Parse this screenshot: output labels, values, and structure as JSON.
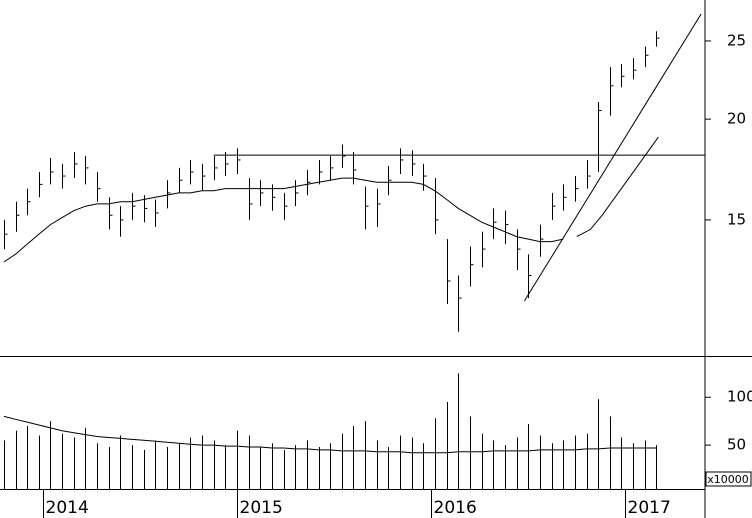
{
  "chart_data": [
    {
      "type": "ohlc",
      "color": "#000000",
      "log_scale": true,
      "x": [
        2013.8,
        2013.86,
        2013.92,
        2013.98,
        2014.04,
        2014.1,
        2014.16,
        2014.22,
        2014.28,
        2014.34,
        2014.4,
        2014.46,
        2014.52,
        2014.58,
        2014.64,
        2014.7,
        2014.76,
        2014.82,
        2014.88,
        2014.94,
        2015.0,
        2015.06,
        2015.12,
        2015.18,
        2015.24,
        2015.3,
        2015.36,
        2015.42,
        2015.48,
        2015.54,
        2015.6,
        2015.66,
        2015.72,
        2015.78,
        2015.84,
        2015.9,
        2015.96,
        2016.02,
        2016.08,
        2016.14,
        2016.2,
        2016.26,
        2016.32,
        2016.38,
        2016.44,
        2016.5,
        2016.56,
        2016.62,
        2016.68,
        2016.74,
        2016.8,
        2016.86,
        2016.92,
        2016.98,
        2017.04,
        2017.1,
        2017.16
      ],
      "high": [
        15.0,
        15.8,
        16.4,
        17.2,
        17.9,
        17.6,
        18.2,
        18.0,
        17.2,
        16.0,
        15.6,
        16.2,
        16.1,
        15.9,
        16.8,
        17.4,
        17.8,
        17.6,
        18.0,
        18.2,
        18.4,
        16.9,
        16.8,
        16.6,
        16.2,
        16.8,
        17.3,
        17.8,
        18.0,
        18.6,
        18.2,
        16.5,
        16.4,
        17.5,
        18.4,
        18.3,
        17.6,
        16.9,
        14.2,
        12.8,
        13.9,
        14.5,
        15.5,
        15.4,
        14.6,
        13.6,
        14.8,
        16.2,
        16.6,
        17.0,
        17.8,
        21.0,
        23.2,
        23.4,
        23.8,
        24.6,
        25.7
      ],
      "low": [
        13.8,
        14.5,
        15.2,
        16.0,
        16.6,
        16.4,
        16.9,
        16.6,
        15.8,
        14.6,
        14.3,
        15.0,
        14.9,
        14.7,
        15.5,
        16.2,
        16.6,
        16.3,
        16.8,
        17.0,
        17.1,
        15.0,
        15.6,
        15.4,
        15.0,
        15.6,
        16.1,
        16.6,
        16.8,
        17.4,
        16.6,
        14.6,
        14.7,
        16.1,
        17.1,
        17.0,
        16.3,
        14.4,
        11.8,
        10.9,
        12.4,
        13.1,
        14.2,
        14.0,
        13.0,
        12.0,
        13.5,
        15.0,
        15.4,
        15.8,
        16.4,
        17.2,
        20.2,
        21.9,
        22.4,
        23.2,
        24.6
      ],
      "close": [
        14.4,
        15.2,
        15.8,
        16.6,
        17.2,
        17.0,
        17.6,
        17.4,
        16.4,
        15.2,
        15.0,
        15.6,
        15.5,
        15.3,
        16.2,
        16.8,
        17.2,
        17.0,
        17.4,
        17.6,
        17.8,
        15.7,
        16.2,
        16.0,
        15.6,
        16.2,
        16.7,
        17.2,
        17.4,
        18.0,
        17.3,
        15.6,
        15.7,
        16.8,
        17.8,
        17.6,
        17.0,
        15.0,
        12.6,
        12.0,
        13.2,
        13.8,
        14.9,
        14.8,
        13.8,
        12.8,
        14.2,
        15.6,
        16.0,
        16.4,
        17.0,
        20.5,
        22.0,
        22.6,
        23.0,
        24.0,
        25.2
      ],
      "moving_average": [
        13.3,
        13.6,
        14.0,
        14.4,
        14.8,
        15.1,
        15.4,
        15.6,
        15.7,
        15.7,
        15.8,
        15.8,
        15.9,
        16.0,
        16.1,
        16.2,
        16.2,
        16.3,
        16.3,
        16.4,
        16.4,
        16.4,
        16.4,
        16.4,
        16.4,
        16.5,
        16.6,
        16.7,
        16.8,
        16.9,
        16.9,
        16.8,
        16.7,
        16.7,
        16.7,
        16.7,
        16.6,
        16.3,
        15.9,
        15.5,
        15.2,
        14.9,
        14.7,
        14.5,
        14.3,
        14.2,
        14.1,
        14.1,
        14.2,
        null,
        null,
        null,
        null,
        null,
        null,
        null,
        null
      ],
      "lines": [
        {
          "x": [
            2014.88,
            2017.41
          ],
          "y": [
            18.05,
            18.05
          ]
        },
        {
          "x": [
            2016.48,
            2017.39
          ],
          "y": [
            11.9,
            27.0
          ]
        },
        {
          "x": [
            2016.75,
            2016.82,
            2016.88,
            2017.17
          ],
          "y": [
            14.3,
            14.6,
            15.2,
            19.0
          ]
        }
      ],
      "xlim": [
        2013.78,
        2017.41
      ],
      "ylim": [
        10.2,
        28.1
      ],
      "yticks": [
        15,
        20,
        25
      ]
    },
    {
      "type": "bar",
      "color": "#000000",
      "unit_label": "x10000",
      "x": [
        2013.8,
        2013.86,
        2013.92,
        2013.98,
        2014.04,
        2014.1,
        2014.16,
        2014.22,
        2014.28,
        2014.34,
        2014.4,
        2014.46,
        2014.52,
        2014.58,
        2014.64,
        2014.7,
        2014.76,
        2014.82,
        2014.88,
        2014.94,
        2015.0,
        2015.06,
        2015.12,
        2015.18,
        2015.24,
        2015.3,
        2015.36,
        2015.42,
        2015.48,
        2015.54,
        2015.6,
        2015.66,
        2015.72,
        2015.78,
        2015.84,
        2015.9,
        2015.96,
        2016.02,
        2016.08,
        2016.14,
        2016.2,
        2016.26,
        2016.32,
        2016.38,
        2016.44,
        2016.5,
        2016.56,
        2016.62,
        2016.68,
        2016.74,
        2016.8,
        2016.86,
        2016.92,
        2016.98,
        2017.04,
        2017.1,
        2017.16
      ],
      "values": [
        55,
        65,
        70,
        60,
        75,
        62,
        58,
        68,
        52,
        48,
        60,
        50,
        45,
        55,
        48,
        52,
        58,
        60,
        55,
        50,
        65,
        60,
        48,
        52,
        45,
        50,
        55,
        48,
        52,
        62,
        70,
        75,
        55,
        48,
        60,
        58,
        52,
        78,
        95,
        125,
        80,
        62,
        55,
        50,
        58,
        72,
        60,
        52,
        55,
        60,
        62,
        98,
        80,
        58,
        52,
        55,
        50
      ],
      "moving_average": [
        80,
        77,
        74,
        71,
        68,
        65,
        63,
        61,
        59,
        58,
        57,
        56,
        55,
        54,
        53,
        52,
        51,
        50,
        50,
        49,
        49,
        48,
        48,
        47,
        47,
        46,
        46,
        45,
        45,
        44,
        44,
        44,
        43,
        43,
        43,
        42,
        42,
        42,
        42,
        43,
        43,
        43,
        44,
        44,
        44,
        44,
        45,
        45,
        45,
        45,
        46,
        46,
        47,
        47,
        47,
        47,
        47
      ],
      "xlim": [
        2013.78,
        2017.41
      ],
      "xticks": [
        2014,
        2015,
        2016,
        2017
      ],
      "ylim": [
        0,
        142
      ],
      "yticks": [
        50,
        100
      ]
    }
  ]
}
